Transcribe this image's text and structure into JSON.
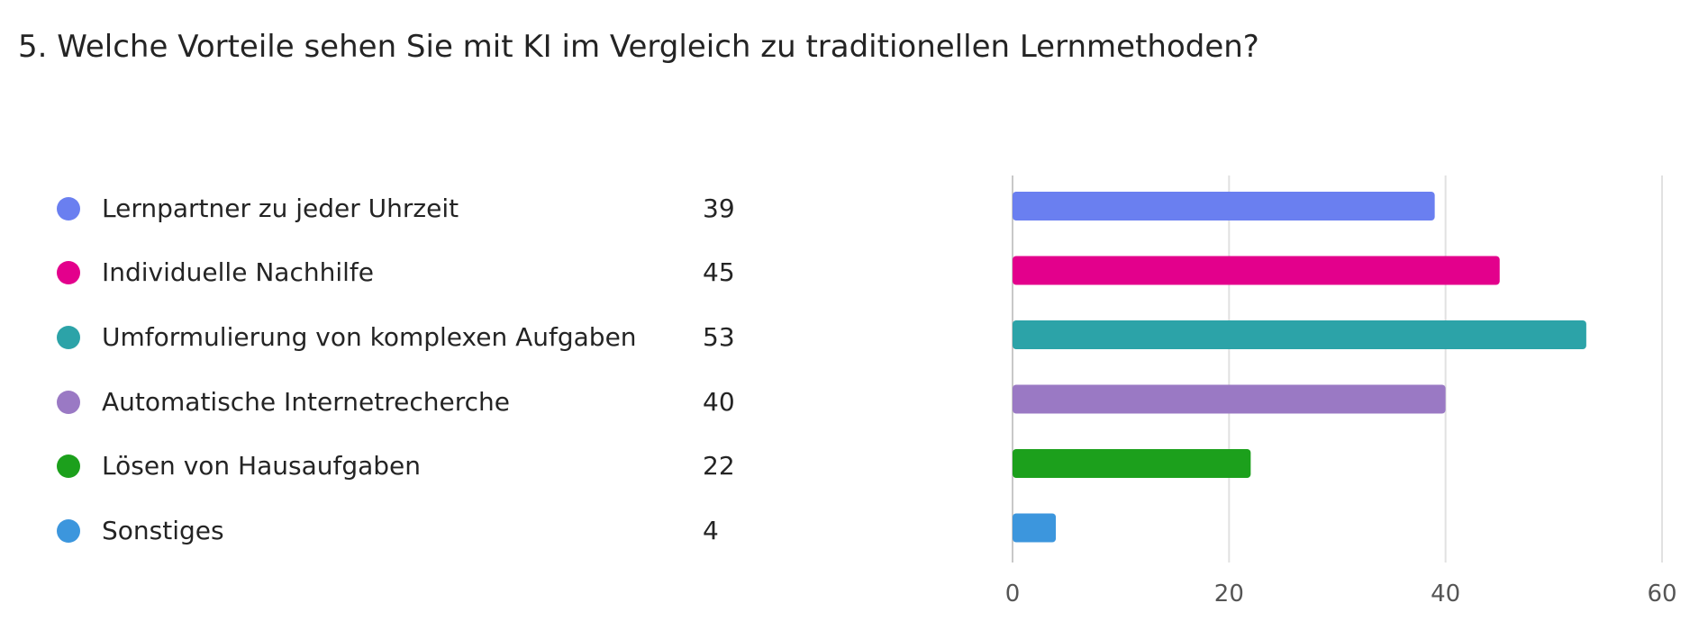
{
  "title": "5. Welche Vorteile sehen Sie mit KI im Vergleich zu traditionellen Lernmethoden?",
  "chart_data": {
    "type": "bar",
    "orientation": "horizontal",
    "categories": [
      "Lernpartner zu jeder Uhrzeit",
      "Individuelle Nachhilfe",
      "Umformulierung von komplexen Aufgaben",
      "Automatische Internetrecherche",
      "Lösen von Hausaufgaben",
      "Sonstiges"
    ],
    "values": [
      39,
      45,
      53,
      40,
      22,
      4
    ],
    "colors": [
      "#6a7ff0",
      "#e3008c",
      "#2ca3a8",
      "#9a79c4",
      "#1ca01c",
      "#3c96dd"
    ],
    "xlim": [
      0,
      60
    ],
    "xticks": [
      0,
      20,
      40,
      60
    ],
    "grid": true,
    "legend_position": "left",
    "title": "5. Welche Vorteile sehen Sie mit KI im Vergleich zu traditionellen Lernmethoden?",
    "xlabel": "",
    "ylabel": ""
  }
}
